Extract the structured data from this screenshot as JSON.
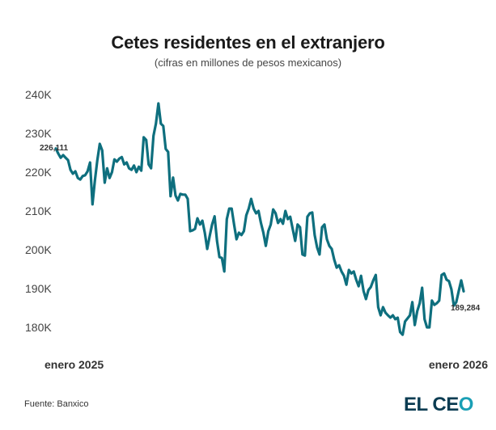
{
  "header": {
    "title": "Cetes residentes en el extranjero",
    "subtitle": "(cifras en millones de pesos mexicanos)"
  },
  "footer": {
    "source": "Fuente: Banxico",
    "logo_main": "EL CE",
    "logo_accent": "O"
  },
  "colors": {
    "line": "#0e6f7e",
    "logo_dark": "#0b3c52",
    "logo_accent": "#1a9fb5"
  },
  "chart_data": {
    "type": "line",
    "title": "Cetes residentes en el extranjero",
    "subtitle": "(cifras en millones de pesos mexicanos)",
    "xlabel": "",
    "ylabel": "",
    "x_tick_labels": [
      "enero 2025",
      "enero 2026"
    ],
    "y_ticks": [
      180000,
      190000,
      200000,
      210000,
      220000,
      230000,
      240000
    ],
    "y_tick_labels": [
      "180K",
      "190K",
      "200K",
      "210K",
      "220K",
      "230K",
      "240K"
    ],
    "ylim": [
      180000,
      240000
    ],
    "grid": false,
    "legend": "none",
    "annotations": [
      {
        "label": "226,111",
        "position": "start"
      },
      {
        "label": "189,284",
        "position": "end"
      }
    ],
    "series": [
      {
        "name": "Cetes residentes en el extranjero",
        "values": [
          226111,
          224800,
          223700,
          224400,
          223700,
          223100,
          220600,
          219600,
          220200,
          218500,
          218100,
          219000,
          219200,
          220200,
          222500,
          211700,
          217900,
          223100,
          227300,
          225600,
          217300,
          221000,
          218500,
          220000,
          223300,
          222700,
          223500,
          223900,
          222000,
          222500,
          221000,
          220600,
          221700,
          220000,
          221400,
          220400,
          229000,
          228300,
          222000,
          221000,
          229400,
          232500,
          237700,
          232500,
          231900,
          226000,
          225200,
          213800,
          218600,
          214000,
          212700,
          214400,
          214200,
          214200,
          213100,
          204800,
          205000,
          205400,
          208100,
          206500,
          207500,
          204400,
          200200,
          203500,
          206500,
          208600,
          202300,
          198100,
          197900,
          194400,
          207900,
          210600,
          210600,
          206500,
          202700,
          204400,
          203800,
          204800,
          208900,
          210600,
          213100,
          210600,
          209400,
          210000,
          206900,
          204400,
          201000,
          204800,
          206500,
          210400,
          209400,
          206900,
          207900,
          206700,
          210000,
          207900,
          208500,
          205400,
          202300,
          206500,
          205800,
          198800,
          198500,
          208500,
          209400,
          209600,
          203800,
          200600,
          198800,
          205800,
          206500,
          202700,
          201000,
          200200,
          197500,
          195400,
          196000,
          194400,
          193300,
          191000,
          194800,
          193900,
          194400,
          192300,
          190600,
          193300,
          189400,
          187300,
          189600,
          190400,
          192100,
          193500,
          185200,
          183100,
          185200,
          183800,
          183100,
          182500,
          183100,
          182100,
          182500,
          178800,
          178100,
          181500,
          182300,
          183100,
          186500,
          180600,
          184200,
          186200,
          190200,
          182100,
          180000,
          180000,
          186900,
          185800,
          186200,
          186900,
          193500,
          193900,
          192300,
          191900,
          189800,
          185600,
          186500,
          189400,
          192100,
          189284
        ]
      }
    ]
  }
}
